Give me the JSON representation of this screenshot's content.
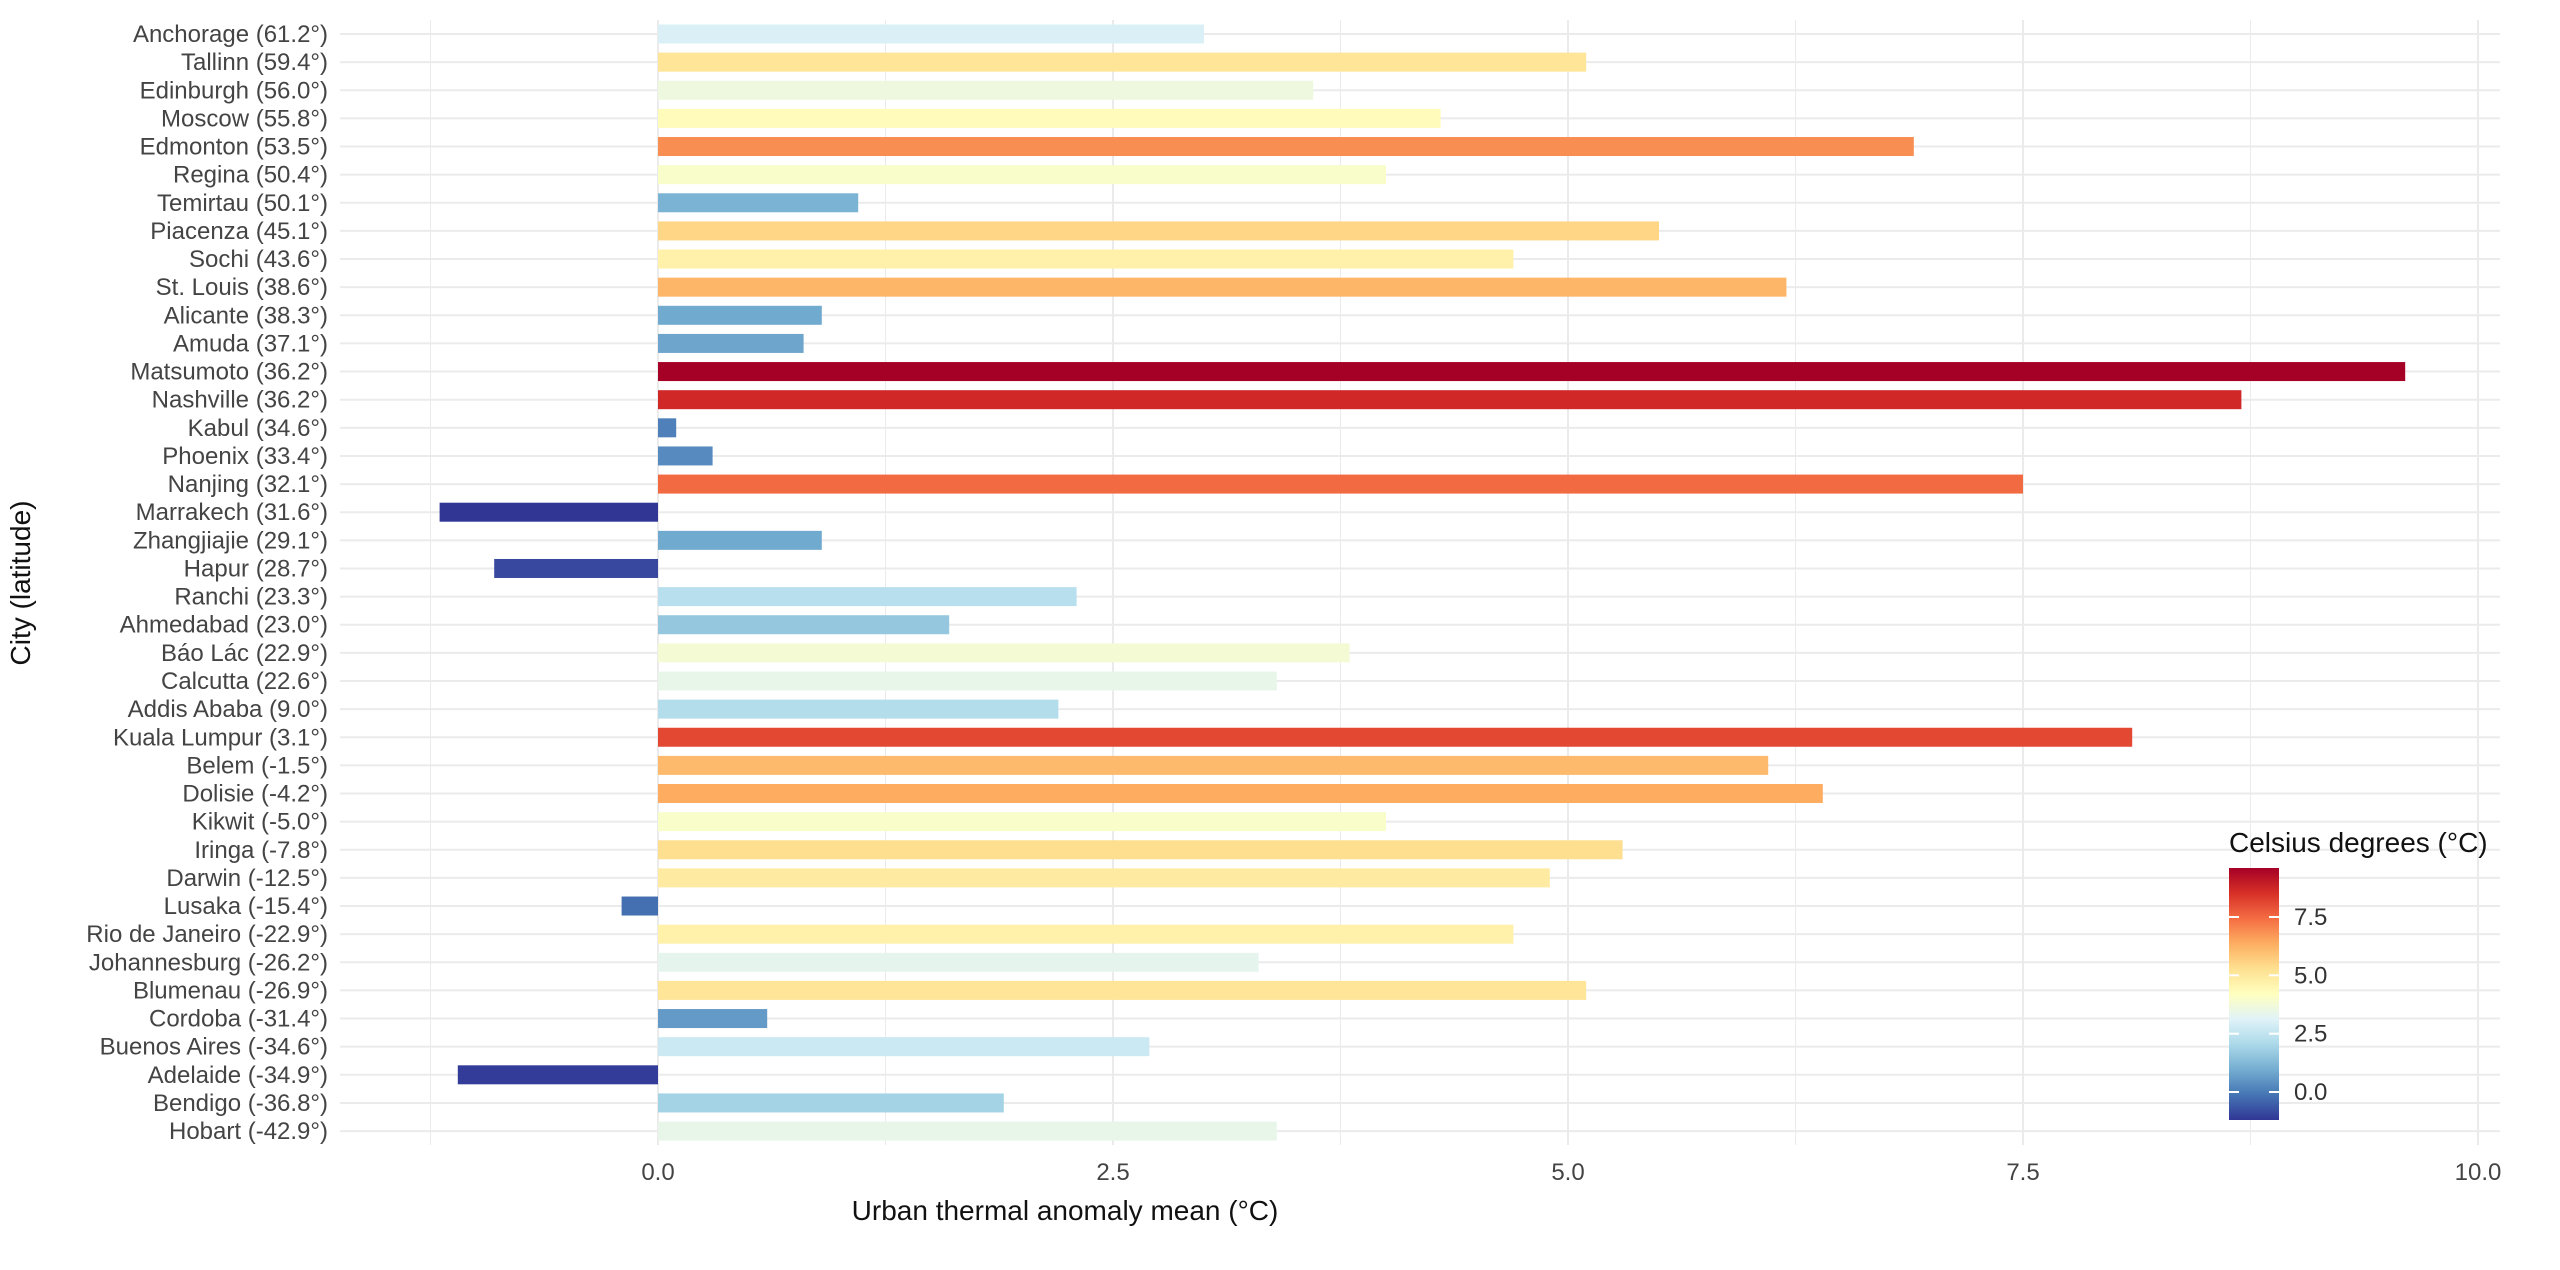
{
  "chart_data": {
    "type": "bar",
    "orientation": "horizontal",
    "xlabel": "Urban thermal anomaly mean (°C)",
    "ylabel": "City (latitude)",
    "xlim": [
      -1.4,
      10.0
    ],
    "xticks": [
      "0.0",
      "2.5",
      "5.0",
      "7.5",
      "10.0"
    ],
    "xtick_values": [
      0,
      2.5,
      5,
      7.5,
      10
    ],
    "grid": true,
    "categories": [
      "Anchorage (61.2°)",
      "Tallinn (59.4°)",
      "Edinburgh (56.0°)",
      "Moscow (55.8°)",
      "Edmonton (53.5°)",
      "Regina (50.4°)",
      "Temirtau (50.1°)",
      "Piacenza (45.1°)",
      "Sochi (43.6°)",
      "St. Louis (38.6°)",
      "Alicante (38.3°)",
      "Amuda (37.1°)",
      "Matsumoto (36.2°)",
      "Nashville (36.2°)",
      "Kabul (34.6°)",
      "Phoenix (33.4°)",
      "Nanjing (32.1°)",
      "Marrakech (31.6°)",
      "Zhangjiajie (29.1°)",
      "Hapur (28.7°)",
      "Ranchi (23.3°)",
      "Ahmedabad (23.0°)",
      "Báo Lác (22.9°)",
      "Calcutta (22.6°)",
      "Addis Ababa (9.0°)",
      "Kuala Lumpur (3.1°)",
      "Belem (-1.5°)",
      "Dolisie (-4.2°)",
      "Kikwit (-5.0°)",
      "Iringa (-7.8°)",
      "Darwin (-12.5°)",
      "Lusaka (-15.4°)",
      "Rio de Janeiro (-22.9°)",
      "Johannesburg (-26.2°)",
      "Blumenau (-26.9°)",
      "Cordoba (-31.4°)",
      "Buenos Aires (-34.6°)",
      "Adelaide (-34.9°)",
      "Bendigo (-36.8°)",
      "Hobart (-42.9°)"
    ],
    "values": [
      3.0,
      5.1,
      3.6,
      4.3,
      6.9,
      4.0,
      1.1,
      5.5,
      4.7,
      6.2,
      0.9,
      0.8,
      9.6,
      8.7,
      0.1,
      0.3,
      7.5,
      -1.2,
      0.9,
      -0.9,
      2.3,
      1.6,
      3.8,
      3.4,
      2.2,
      8.1,
      6.1,
      6.4,
      4.0,
      5.3,
      4.9,
      -0.2,
      4.7,
      3.3,
      5.1,
      0.6,
      2.7,
      -1.1,
      1.9,
      3.4
    ],
    "legend": {
      "title": "Celsius degrees (°C)",
      "position": "bottom-right",
      "ticks": [
        "0.0",
        "2.5",
        "5.0",
        "7.5"
      ],
      "tick_values": [
        0,
        2.5,
        5,
        7.5
      ],
      "range": [
        -1.2,
        9.6
      ],
      "palette": [
        "#313695",
        "#4575b4",
        "#74add1",
        "#abd9e9",
        "#e0f3f8",
        "#ffffbf",
        "#fee090",
        "#fdae61",
        "#f46d43",
        "#d73027",
        "#a50026"
      ]
    }
  }
}
